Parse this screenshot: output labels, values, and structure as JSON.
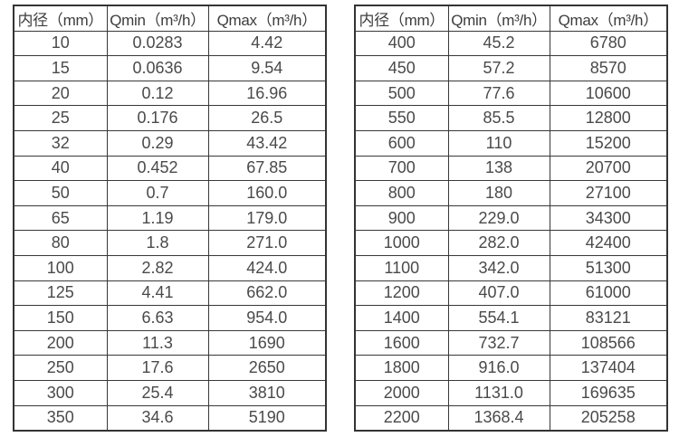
{
  "columns": [
    "内径（mm）",
    "Qmin（m³/h）",
    "Qmax（m³/h）"
  ],
  "column_keys": [
    "inner-diameter",
    "qmin",
    "qmax"
  ],
  "tables": [
    {
      "name": "flow-table-left",
      "rows": [
        [
          "10",
          "0.0283",
          "4.42"
        ],
        [
          "15",
          "0.0636",
          "9.54"
        ],
        [
          "20",
          "0.12",
          "16.96"
        ],
        [
          "25",
          "0.176",
          "26.5"
        ],
        [
          "32",
          "0.29",
          "43.42"
        ],
        [
          "40",
          "0.452",
          "67.85"
        ],
        [
          "50",
          "0.7",
          "160.0"
        ],
        [
          "65",
          "1.19",
          "179.0"
        ],
        [
          "80",
          "1.8",
          "271.0"
        ],
        [
          "100",
          "2.82",
          "424.0"
        ],
        [
          "125",
          "4.41",
          "662.0"
        ],
        [
          "150",
          "6.63",
          "954.0"
        ],
        [
          "200",
          "11.3",
          "1690"
        ],
        [
          "250",
          "17.6",
          "2650"
        ],
        [
          "300",
          "25.4",
          "3810"
        ],
        [
          "350",
          "34.6",
          "5190"
        ]
      ]
    },
    {
      "name": "flow-table-right",
      "rows": [
        [
          "400",
          "45.2",
          "6780"
        ],
        [
          "450",
          "57.2",
          "8570"
        ],
        [
          "500",
          "77.6",
          "10600"
        ],
        [
          "550",
          "85.5",
          "12800"
        ],
        [
          "600",
          "110",
          "15200"
        ],
        [
          "700",
          "138",
          "20700"
        ],
        [
          "800",
          "180",
          "27100"
        ],
        [
          "900",
          "229.0",
          "34300"
        ],
        [
          "1000",
          "282.0",
          "42400"
        ],
        [
          "1100",
          "342.0",
          "51300"
        ],
        [
          "1200",
          "407.0",
          "61000"
        ],
        [
          "1400",
          "554.1",
          "83121"
        ],
        [
          "1600",
          "732.7",
          "108566"
        ],
        [
          "1800",
          "916.0",
          "137404"
        ],
        [
          "2000",
          "1131.0",
          "169635"
        ],
        [
          "2200",
          "1368.4",
          "205258"
        ]
      ]
    }
  ],
  "colors": {
    "border": "#333333",
    "header_text": "#3d3d3d",
    "cell_text": "#4a4a4a",
    "background": "#ffffff"
  }
}
